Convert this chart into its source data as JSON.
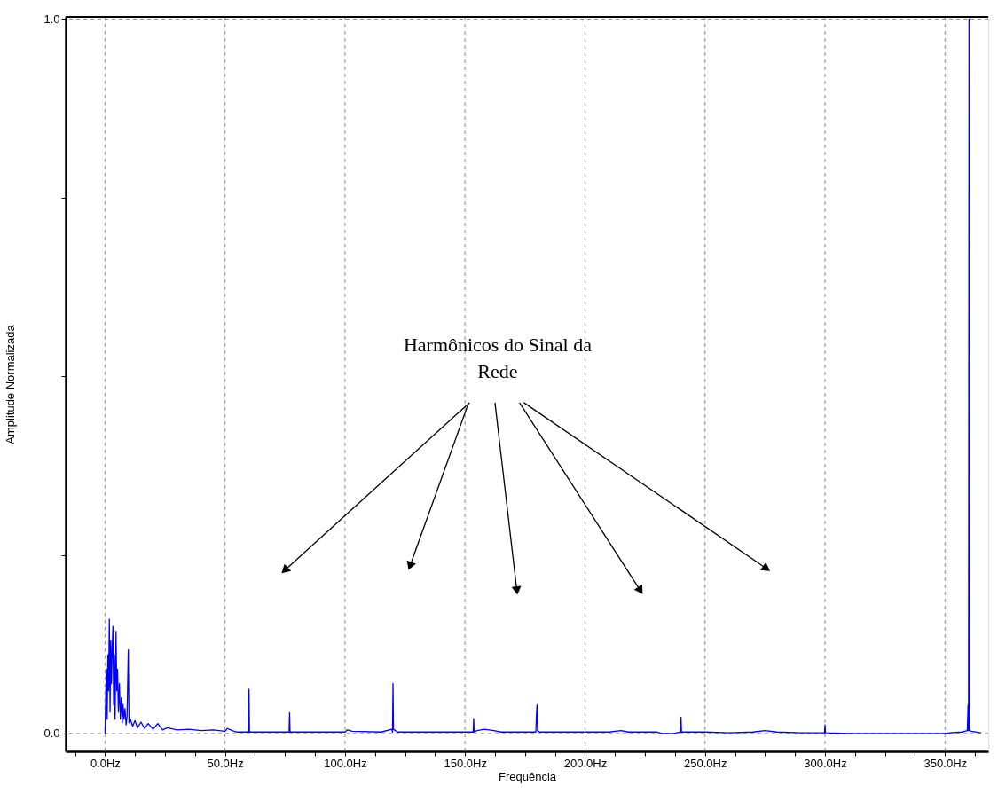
{
  "chart_data": {
    "type": "line",
    "xlabel": "Frequência",
    "ylabel": "Amplitude Normalizada",
    "annotations": [
      "Harmônicos do Sinal da Rede"
    ],
    "x": [
      0,
      0.3,
      0.6,
      0.9,
      1.2,
      1.5,
      1.8,
      2.1,
      2.4,
      2.7,
      3.0,
      3.3,
      3.6,
      3.9,
      4.2,
      4.6,
      4.9,
      5.2,
      5.6,
      6.0,
      6.4,
      6.8,
      7.2,
      7.5,
      7.9,
      8.3,
      8.8,
      9.2,
      9.7,
      10.0,
      10.6,
      11.5,
      12.5,
      13.5,
      15,
      16.5,
      18,
      20,
      22,
      24,
      26,
      30,
      35,
      40,
      45,
      50,
      51,
      53,
      55,
      59.8,
      60,
      60.2,
      70,
      76.7,
      76.9,
      77.1,
      90,
      100,
      101,
      103,
      115,
      119.5,
      119.8,
      120,
      120.2,
      121,
      122,
      140,
      153.4,
      153.6,
      153.8,
      155,
      158,
      162,
      165,
      179.5,
      179.8,
      180,
      180.2,
      181,
      200,
      210,
      215,
      218,
      230,
      232,
      237,
      239.8,
      240,
      240.2,
      250,
      260,
      270,
      275,
      280,
      290,
      299.8,
      300,
      300.2,
      310,
      350,
      352,
      357,
      359.3,
      359.6,
      359.8,
      360,
      360.2,
      361,
      365
    ],
    "series": [
      {
        "color": "#0000ff",
        "values": [
          0,
          0.05,
          0.09,
          0.02,
          0.11,
          0.06,
          0.16,
          0.03,
          0.13,
          0.07,
          0.12,
          0.15,
          0.04,
          0.11,
          0.02,
          0.143,
          0.06,
          0.09,
          0.03,
          0.07,
          0.02,
          0.05,
          0.015,
          0.041,
          0.02,
          0.035,
          0.012,
          0.025,
          0.117,
          0.015,
          0.02,
          0.01,
          0.018,
          0.008,
          0.016,
          0.007,
          0.014,
          0.006,
          0.014,
          0.005,
          0.008,
          0.005,
          0.006,
          0.004,
          0.005,
          0.003,
          0.007,
          0.004,
          0.002,
          0.002,
          0.062,
          0.002,
          0.002,
          0.002,
          0.029,
          0.002,
          0.002,
          0.002,
          0.005,
          0.003,
          0.002,
          0.006,
          0.002,
          0.07,
          0.006,
          0.004,
          0.002,
          0.002,
          0.002,
          0.021,
          0.002,
          0.004,
          0.006,
          0.004,
          0.002,
          0.002,
          0.028,
          0.04,
          0.004,
          0.002,
          0.002,
          0.002,
          0.004,
          0.002,
          0.002,
          0,
          0,
          0.002,
          0.023,
          0.002,
          0.002,
          0.001,
          0.002,
          0.004,
          0.002,
          0.001,
          0.001,
          0.012,
          0.001,
          0,
          0,
          0.001,
          0.002,
          0.004,
          0.04,
          0.004,
          1.0,
          0.004,
          0.003,
          0.001
        ]
      }
    ],
    "xlim": [
      -16.4,
      368
    ],
    "xticks": [
      {
        "value": -12.5,
        "label": null
      },
      {
        "value": 0,
        "label": "0.0Hz"
      },
      {
        "value": 12.5,
        "label": null
      },
      {
        "value": 25,
        "label": null
      },
      {
        "value": 37.5,
        "label": null
      },
      {
        "value": 50,
        "label": "50.0Hz"
      },
      {
        "value": 62.5,
        "label": null
      },
      {
        "value": 75,
        "label": null
      },
      {
        "value": 87.5,
        "label": null
      },
      {
        "value": 100,
        "label": "100.0Hz"
      },
      {
        "value": 112.5,
        "label": null
      },
      {
        "value": 125,
        "label": null
      },
      {
        "value": 137.5,
        "label": null
      },
      {
        "value": 150,
        "label": "150.0Hz"
      },
      {
        "value": 162.5,
        "label": null
      },
      {
        "value": 175,
        "label": null
      },
      {
        "value": 187.5,
        "label": null
      },
      {
        "value": 200,
        "label": "200.0Hz"
      },
      {
        "value": 212.5,
        "label": null
      },
      {
        "value": 225,
        "label": null
      },
      {
        "value": 237.5,
        "label": null
      },
      {
        "value": 250,
        "label": "250.0Hz"
      },
      {
        "value": 262.5,
        "label": null
      },
      {
        "value": 275,
        "label": null
      },
      {
        "value": 287.5,
        "label": null
      },
      {
        "value": 300,
        "label": "300.0Hz"
      },
      {
        "value": 312.5,
        "label": null
      },
      {
        "value": 325,
        "label": null
      },
      {
        "value": 337.5,
        "label": null
      },
      {
        "value": 350,
        "label": "350.0Hz"
      },
      {
        "value": 362.5,
        "label": null
      }
    ],
    "ylim": [
      -0.025,
      1.003
    ],
    "yticks": [
      {
        "value": 0,
        "label": "0.0"
      },
      {
        "value": 0.25,
        "label": null
      },
      {
        "value": 0.5,
        "label": null
      },
      {
        "value": 0.75,
        "label": null
      },
      {
        "value": 1,
        "label": "1.0"
      }
    ],
    "grid": true,
    "line_style": "solid",
    "marker": "none"
  }
}
